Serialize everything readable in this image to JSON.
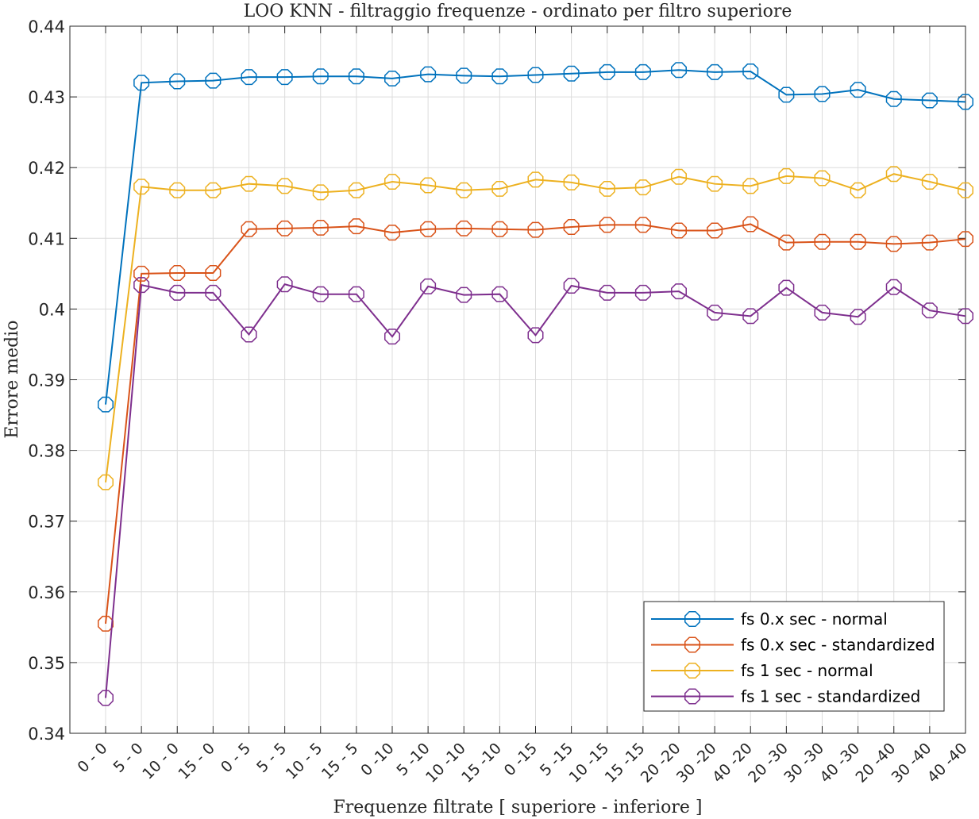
{
  "chart_data": {
    "type": "line",
    "title": "LOO KNN - filtraggio frequenze - ordinato per filtro superiore",
    "xlabel": "Frequenze filtrate [ superiore - inferiore ]",
    "ylabel": "Errore medio",
    "ylim": [
      0.34,
      0.44
    ],
    "yticks": [
      "0.34",
      "0.35",
      "0.36",
      "0.37",
      "0.38",
      "0.39",
      "0.4",
      "0.41",
      "0.42",
      "0.43",
      "0.44"
    ],
    "grid": true,
    "legend_position": "bottom-right",
    "marker": "octagon",
    "categories": [
      "0 - 0",
      "5 - 0",
      "10 - 0",
      "15 - 0",
      "0 - 5",
      "5 - 5",
      "10 - 5",
      "15 - 5",
      "0 -10",
      "5 -10",
      "10 -10",
      "15 -10",
      "0 -15",
      "5 -15",
      "10 -15",
      "15 -15",
      "20 -20",
      "30 -20",
      "40 -20",
      "20 -30",
      "30 -30",
      "40 -30",
      "20 -40",
      "30 -40",
      "40 -40"
    ],
    "series": [
      {
        "name": "fs 0.x sec - normal",
        "color": "#0072BD",
        "values": [
          0.3865,
          0.432,
          0.4322,
          0.4323,
          0.4328,
          0.4328,
          0.4329,
          0.4329,
          0.4326,
          0.4332,
          0.433,
          0.4329,
          0.4331,
          0.4333,
          0.4335,
          0.4335,
          0.4338,
          0.4335,
          0.4336,
          0.4303,
          0.4304,
          0.431,
          0.4297,
          0.4295,
          0.4293
        ]
      },
      {
        "name": "fs 0.x sec - standardized",
        "color": "#D95319",
        "values": [
          0.3555,
          0.405,
          0.4051,
          0.4051,
          0.4113,
          0.4114,
          0.4115,
          0.4117,
          0.4108,
          0.4113,
          0.4114,
          0.4113,
          0.4112,
          0.4116,
          0.4119,
          0.4119,
          0.4111,
          0.4111,
          0.412,
          0.4094,
          0.4095,
          0.4095,
          0.4092,
          0.4094,
          0.4099
        ]
      },
      {
        "name": "fs 1 sec - normal",
        "color": "#EDB120",
        "values": [
          0.3755,
          0.4173,
          0.4168,
          0.4168,
          0.4177,
          0.4174,
          0.4165,
          0.4168,
          0.418,
          0.4175,
          0.4168,
          0.417,
          0.4183,
          0.4179,
          0.417,
          0.4172,
          0.4187,
          0.4177,
          0.4174,
          0.4188,
          0.4185,
          0.4168,
          0.4191,
          0.418,
          0.4168
        ]
      },
      {
        "name": "fs 1 sec - standardized",
        "color": "#7E2F8E",
        "values": [
          0.345,
          0.4034,
          0.4023,
          0.4023,
          0.3964,
          0.4035,
          0.4021,
          0.4021,
          0.3961,
          0.4032,
          0.402,
          0.4021,
          0.3963,
          0.4033,
          0.4023,
          0.4023,
          0.4025,
          0.3995,
          0.399,
          0.403,
          0.3995,
          0.3989,
          0.4031,
          0.3998,
          0.399
        ]
      }
    ]
  }
}
